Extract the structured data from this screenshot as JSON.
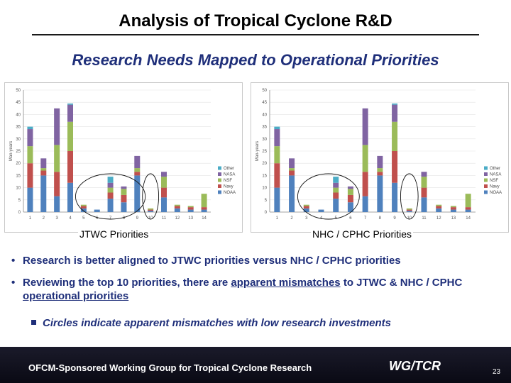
{
  "slide": {
    "title": "Analysis of Tropical Cyclone R&D",
    "subtitle": "Research Needs Mapped to Operational Priorities",
    "bullets": [
      {
        "parts": [
          {
            "t": "Research is better aligned to JTWC priorities versus NHC / CPHC priorities",
            "u": false
          }
        ]
      },
      {
        "parts": [
          {
            "t": "Reviewing the top 10 priorities, there are ",
            "u": false
          },
          {
            "t": "apparent mismatches",
            "u": true
          },
          {
            "t": " to JTWC & NHC / CPHC ",
            "u": false
          },
          {
            "t": "operational priorities",
            "u": true
          }
        ]
      }
    ],
    "sub_bullet": "Circles indicate apparent mismatches with low research investments",
    "footer": {
      "text": "OFCM-Sponsored Working Group for Tropical Cyclone Research",
      "logo": "WG/TCR",
      "page": "23"
    }
  },
  "colors": {
    "NOAA": "#4f81bd",
    "Navy": "#c0504d",
    "NSF": "#9bbb59",
    "NASA": "#8064a2",
    "Other": "#4bacc6",
    "text_blue": "#1f2f7a"
  },
  "chart_data": [
    {
      "type": "bar",
      "stacked": true,
      "caption": "JTWC Priorities",
      "ylabel": "Man-years",
      "ylim": [
        0,
        50
      ],
      "yticks": [
        0,
        5,
        10,
        15,
        20,
        25,
        30,
        35,
        40,
        45,
        50
      ],
      "categories": [
        "1",
        "2",
        "3",
        "4",
        "5",
        "6",
        "7",
        "8",
        "9",
        "10",
        "11",
        "12",
        "13",
        "14"
      ],
      "legend": [
        "Other",
        "NASA",
        "NSF",
        "Navy",
        "NOAA"
      ],
      "legend_position": "right",
      "series": [
        {
          "name": "NOAA",
          "values": [
            10,
            15,
            6.5,
            12,
            1.5,
            1,
            5.5,
            4,
            15,
            0.5,
            6,
            1.5,
            1,
            1
          ]
        },
        {
          "name": "Navy",
          "values": [
            10,
            2,
            10,
            13,
            1,
            0,
            2.5,
            3,
            1.5,
            0.5,
            4,
            1,
            1,
            1
          ]
        },
        {
          "name": "NSF",
          "values": [
            7,
            1,
            11,
            12,
            0.5,
            0,
            2,
            2.5,
            1.5,
            0.5,
            4.5,
            0.5,
            0.5,
            5.5
          ]
        },
        {
          "name": "NASA",
          "values": [
            7,
            4,
            15,
            7,
            0,
            0,
            2,
            1,
            5,
            0,
            2,
            0,
            0,
            0
          ]
        },
        {
          "name": "Other",
          "values": [
            1,
            0,
            0,
            0.5,
            0,
            0,
            2.5,
            0,
            0,
            0,
            0,
            0,
            0,
            0
          ]
        }
      ],
      "circles": [
        {
          "from": 5,
          "to": 9
        },
        {
          "from": 10,
          "to": 10
        }
      ]
    },
    {
      "type": "bar",
      "stacked": true,
      "caption": "NHC / CPHC Priorities",
      "ylabel": "Man-years",
      "ylim": [
        0,
        50
      ],
      "yticks": [
        0,
        5,
        10,
        15,
        20,
        25,
        30,
        35,
        40,
        45,
        50
      ],
      "categories": [
        "1",
        "2",
        "3",
        "4",
        "5",
        "6",
        "7",
        "8",
        "9",
        "10",
        "11",
        "12",
        "13",
        "14"
      ],
      "legend": [
        "Other",
        "NASA",
        "NSF",
        "Navy",
        "NOAA"
      ],
      "legend_position": "right",
      "series": [
        {
          "name": "NOAA",
          "values": [
            10,
            15,
            1.5,
            1,
            5.5,
            4,
            6.5,
            15,
            12,
            0.5,
            6,
            1.5,
            1,
            1
          ]
        },
        {
          "name": "Navy",
          "values": [
            10,
            2,
            1,
            0,
            2.5,
            3,
            10,
            1.5,
            13,
            0.5,
            4,
            1,
            1,
            1
          ]
        },
        {
          "name": "NSF",
          "values": [
            7,
            1,
            0.5,
            0,
            2,
            2.5,
            11,
            1.5,
            12,
            0.5,
            4.5,
            0.5,
            0.5,
            5.5
          ]
        },
        {
          "name": "NASA",
          "values": [
            7,
            4,
            0,
            0,
            2,
            1,
            15,
            5,
            7,
            0,
            2,
            0,
            0,
            0
          ]
        },
        {
          "name": "Other",
          "values": [
            1,
            0,
            0,
            0,
            2.5,
            0,
            0,
            0,
            0.5,
            0,
            0,
            0,
            0,
            0
          ]
        }
      ],
      "circles": [
        {
          "from": 3,
          "to": 6
        },
        {
          "from": 10,
          "to": 10
        }
      ]
    }
  ]
}
